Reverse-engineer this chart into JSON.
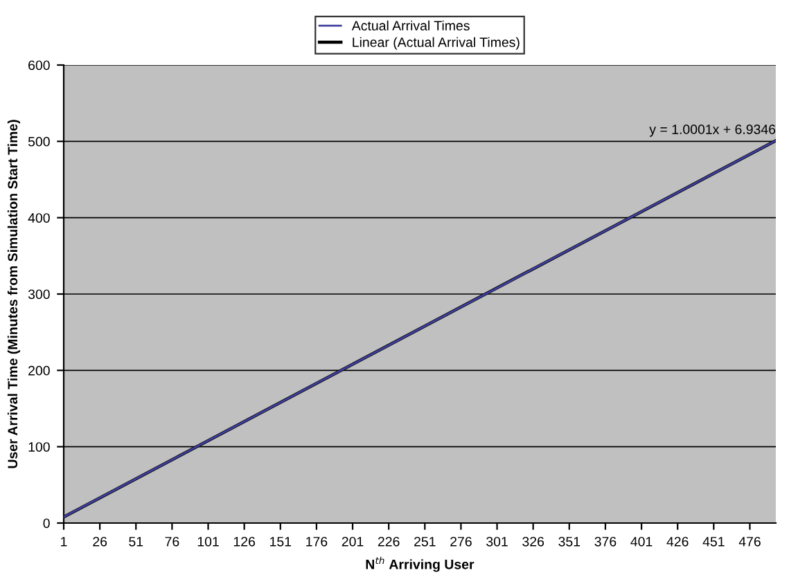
{
  "chart_data": {
    "type": "line",
    "xlabel": "N$^{th}$ Arriving User",
    "ylabel": "User Arrival Time (Minutes from Simulation Start Time)",
    "series": [
      {
        "name": "Actual Arrival Times",
        "color": "#4040a0",
        "x": [
          1,
          26,
          51,
          76,
          101,
          126,
          151,
          176,
          201,
          226,
          251,
          276,
          301,
          326,
          351,
          376,
          401,
          426,
          451,
          476,
          494
        ],
        "values": [
          8,
          33,
          58,
          83,
          108,
          133,
          158,
          183,
          208,
          233,
          258,
          283,
          308,
          333,
          358,
          383,
          408,
          433,
          458,
          483,
          501
        ]
      },
      {
        "name": "Linear (Actual Arrival Times)",
        "color": "#000000",
        "x": [
          1,
          494
        ],
        "values": [
          8,
          501
        ]
      }
    ],
    "xlim": [
      1,
      494
    ],
    "xticks": [
      1,
      26,
      51,
      76,
      101,
      126,
      151,
      176,
      201,
      226,
      251,
      276,
      301,
      326,
      351,
      376,
      401,
      426,
      451,
      476
    ],
    "ylim": [
      0,
      600
    ],
    "yticks": [
      0,
      100,
      200,
      300,
      400,
      500,
      600
    ],
    "grid": "y",
    "legend": "top",
    "marker": "none",
    "line_style": "solid",
    "annotations": [
      {
        "text": "y = 1.0001x + 6.9346",
        "x": 494,
        "y": 501
      }
    ]
  }
}
